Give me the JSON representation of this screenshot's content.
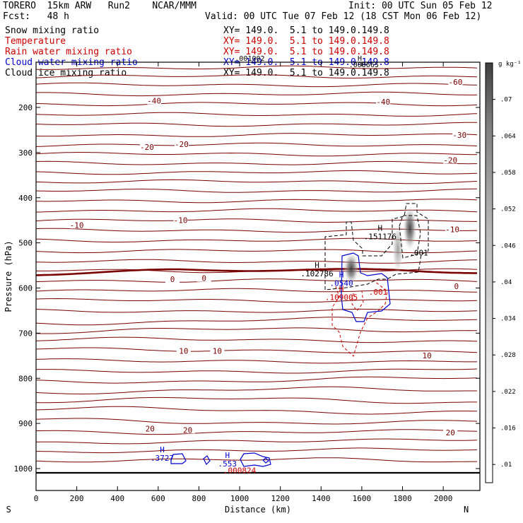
{
  "header": {
    "left_line1": "TORERO  15km ARW   Run2    NCAR/MMM",
    "left_line2": "Fcst:   48 h",
    "init": "Init: 00 UTC Sun 05 Feb 12",
    "valid": "Valid: 00 UTC Tue 07 Feb 12 (18 CST Mon 06 Feb 12)"
  },
  "fields": [
    {
      "name": "Snow mixing ratio",
      "range": "XY= 149.0.  5.1 to 149.0.149.8",
      "color": "#000000"
    },
    {
      "name": "Temperature",
      "range": "XY= 149.0.  5.1 to 149.0.149.8",
      "color": "#cc0000"
    },
    {
      "name": "Rain water mixing ratio",
      "range": "XY= 149.0.  5.1 to 149.0.149.8",
      "color": "#cc0000"
    },
    {
      "name": "Cloud water mixing ratio",
      "range": "XY= 149.0.  5.1 to 149.0.149.8",
      "color": "#0000cc"
    },
    {
      "name": "Cloud ice mixing ratio",
      "range": "XY= 149.0.  5.1 to 149.0.149.8",
      "color": "#000000"
    }
  ],
  "chart_data": {
    "type": "contour",
    "xlabel": "Distance (km)",
    "ylabel": "Pressure (hPa)",
    "xlim": [
      0,
      2180
    ],
    "ylim": [
      1050,
      100
    ],
    "x_ticks": [
      0,
      200,
      400,
      600,
      800,
      1000,
      1200,
      1400,
      1600,
      1800,
      2000
    ],
    "y_ticks": [
      200,
      300,
      400,
      500,
      600,
      700,
      800,
      900,
      1000
    ],
    "x_end_labels": {
      "left": "S",
      "right": "N"
    },
    "colorbar": {
      "unit": "g kg⁻¹",
      "ticks": [
        ".01",
        ".016",
        ".022",
        ".028",
        ".034",
        ".04",
        ".046",
        ".052",
        ".058",
        ".064",
        ".07"
      ],
      "range": [
        0.007,
        0.076
      ]
    },
    "temperature_contour_labels": [
      {
        "text": "-60",
        "x": 2060,
        "y": 145
      },
      {
        "text": "-40",
        "x": 580,
        "y": 187
      },
      {
        "text": "-40",
        "x": 1705,
        "y": 189
      },
      {
        "text": "-30",
        "x": 2080,
        "y": 263
      },
      {
        "text": "-20",
        "x": 545,
        "y": 289
      },
      {
        "text": "-20",
        "x": 715,
        "y": 283
      },
      {
        "text": "-20",
        "x": 2035,
        "y": 318
      },
      {
        "text": "-10",
        "x": 200,
        "y": 462
      },
      {
        "text": "-10",
        "x": 710,
        "y": 451
      },
      {
        "text": "-10",
        "x": 2045,
        "y": 472
      },
      {
        "text": "0",
        "x": 670,
        "y": 582
      },
      {
        "text": "0",
        "x": 825,
        "y": 580
      },
      {
        "text": "0",
        "x": 2065,
        "y": 598
      },
      {
        "text": "10",
        "x": 725,
        "y": 741
      },
      {
        "text": "10",
        "x": 890,
        "y": 741
      },
      {
        "text": "10",
        "x": 1920,
        "y": 751
      },
      {
        "text": "20",
        "x": 560,
        "y": 913
      },
      {
        "text": "20",
        "x": 745,
        "y": 916
      },
      {
        "text": "20",
        "x": 2035,
        "y": 922
      }
    ],
    "max_labels": [
      {
        "mark": "H",
        "value": ".102786",
        "x": 1380,
        "y": 574,
        "color": "#000000"
      },
      {
        "mark": "H",
        "value": ".151176",
        "x": 1690,
        "y": 492,
        "color": "#000000"
      },
      {
        "mark": "",
        "value": ".001",
        "x": 1880,
        "y": 528,
        "color": "#000000"
      },
      {
        "mark": "H",
        "value": ".0540",
        "x": 1500,
        "y": 595,
        "color": "#0000cc"
      },
      {
        "mark": "H",
        "value": ".109005",
        "x": 1500,
        "y": 627,
        "color": "#cc0000"
      },
      {
        "mark": "",
        "value": ".001",
        "x": 1680,
        "y": 615,
        "color": "#cc0000"
      },
      {
        "mark": "H",
        "value": ".3727",
        "x": 620,
        "y": 983,
        "color": "#0000cc"
      },
      {
        "mark": "H",
        "value": ".553",
        "x": 940,
        "y": 995,
        "color": "#0000cc"
      },
      {
        "mark": "",
        "value": ".000824",
        "x": 1000,
        "y": 1010,
        "color": "#cc0000"
      }
    ],
    "header_overlap_labels": [
      {
        "text": ".001002",
        "x": 1050,
        "y": 97
      },
      {
        "text": ".000665",
        "x": 1610,
        "y": 111
      },
      {
        "text": "H",
        "x": 1590,
        "y": 97
      }
    ]
  }
}
